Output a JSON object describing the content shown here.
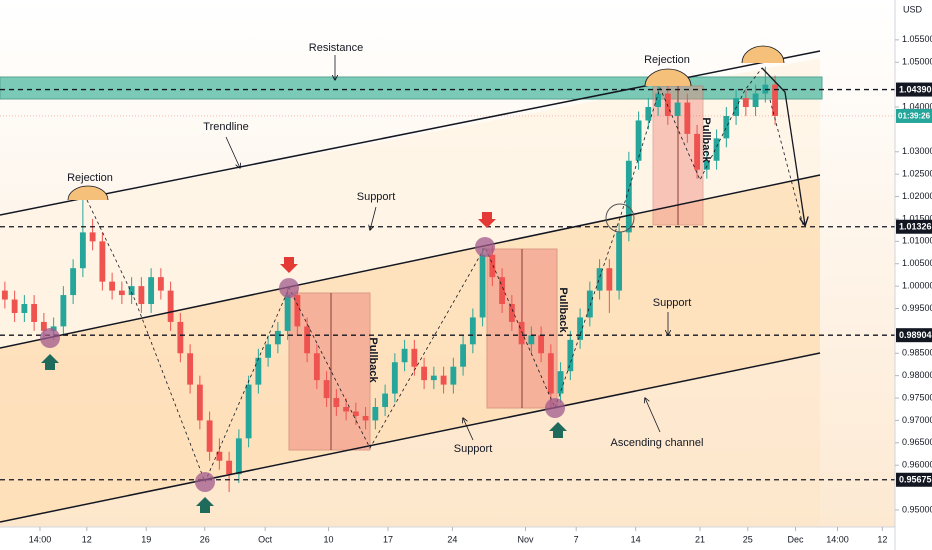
{
  "chart_data": {
    "type": "candlestick",
    "currency": "USD",
    "up_color": "#26a69a",
    "down_color": "#ef5350",
    "ylim": [
      0.9462,
      1.0639
    ],
    "xlim": [
      -0.5,
      91.3
    ],
    "grid": false,
    "yticks": [
      {
        "value": 1.055,
        "label": "1.05500"
      },
      {
        "value": 1.05,
        "label": "1.05000"
      },
      {
        "value": 1.04,
        "label": "1.04000"
      },
      {
        "value": 1.03,
        "label": "1.03000"
      },
      {
        "value": 1.025,
        "label": "1.02500"
      },
      {
        "value": 1.02,
        "label": "1.02000"
      },
      {
        "value": 1.015,
        "label": "1.01500"
      },
      {
        "value": 1.01,
        "label": "1.01000"
      },
      {
        "value": 1.005,
        "label": "1.00500"
      },
      {
        "value": 1.0,
        "label": "1.00000"
      },
      {
        "value": 0.995,
        "label": "0.99500"
      },
      {
        "value": 0.985,
        "label": "0.98500"
      },
      {
        "value": 0.98,
        "label": "0.98000"
      },
      {
        "value": 0.975,
        "label": "0.97500"
      },
      {
        "value": 0.97,
        "label": "0.97000"
      },
      {
        "value": 0.965,
        "label": "0.96500"
      },
      {
        "value": 0.96,
        "label": "0.96000"
      },
      {
        "value": 0.95,
        "label": "0.95000"
      }
    ],
    "xticks": [
      {
        "value": 3.6,
        "label": "14:00"
      },
      {
        "value": 8.4,
        "label": "12"
      },
      {
        "value": 14.5,
        "label": "19"
      },
      {
        "value": 20.5,
        "label": "26"
      },
      {
        "value": 26.7,
        "label": "Oct"
      },
      {
        "value": 33.2,
        "label": "10"
      },
      {
        "value": 39.3,
        "label": "17"
      },
      {
        "value": 45.9,
        "label": "24"
      },
      {
        "value": 53.4,
        "label": "Nov"
      },
      {
        "value": 58.6,
        "label": "7"
      },
      {
        "value": 64.7,
        "label": "14"
      },
      {
        "value": 71.3,
        "label": "21"
      },
      {
        "value": 76.2,
        "label": "25"
      },
      {
        "value": 81.1,
        "label": "Dec"
      },
      {
        "value": 85.4,
        "label": "14:00"
      },
      {
        "value": 90.0,
        "label": "12"
      }
    ],
    "levels": [
      {
        "value": 1.0439,
        "label": "1.04390"
      },
      {
        "value": 1.01326,
        "label": "1.01326"
      },
      {
        "value": 0.98904,
        "label": "0.98904"
      },
      {
        "value": 0.95675,
        "label": "0.95675"
      }
    ],
    "countdown": "01:39:26",
    "annotations": [
      "Resistance",
      "Trendline",
      "Rejection",
      "Support",
      "Rejection",
      "Support",
      "Support",
      "Ascending channel",
      "Pullback",
      "Pullback",
      "Pullback"
    ],
    "candles": [
      [
        0.999,
        1.001,
        0.995,
        0.997
      ],
      [
        0.997,
        0.999,
        0.992,
        0.994
      ],
      [
        0.994,
        0.998,
        0.992,
        0.996
      ],
      [
        0.996,
        0.998,
        0.99,
        0.992
      ],
      [
        0.992,
        0.994,
        0.988,
        0.99
      ],
      [
        0.99,
        0.993,
        0.988,
        0.991
      ],
      [
        0.991,
        1.0,
        0.989,
        0.998
      ],
      [
        0.998,
        1.006,
        0.996,
        1.004
      ],
      [
        1.004,
        1.0195,
        1.002,
        1.012
      ],
      [
        1.012,
        1.015,
        1.008,
        1.01
      ],
      [
        1.01,
        1.012,
        0.999,
        1.001
      ],
      [
        1.001,
        1.003,
        0.997,
        0.999
      ],
      [
        0.999,
        1.001,
        0.996,
        0.998
      ],
      [
        0.998,
        1.002,
        0.996,
        1.0
      ],
      [
        1.0,
        1.002,
        0.994,
        0.996
      ],
      [
        0.996,
        1.004,
        0.994,
        1.002
      ],
      [
        1.002,
        1.004,
        0.997,
        0.999
      ],
      [
        0.999,
        1.001,
        0.99,
        0.992
      ],
      [
        0.992,
        0.994,
        0.983,
        0.985
      ],
      [
        0.985,
        0.987,
        0.976,
        0.978
      ],
      [
        0.978,
        0.98,
        0.968,
        0.97
      ],
      [
        0.97,
        0.972,
        0.961,
        0.963
      ],
      [
        0.963,
        0.966,
        0.959,
        0.961
      ],
      [
        0.961,
        0.963,
        0.954,
        0.958
      ],
      [
        0.958,
        0.968,
        0.956,
        0.966
      ],
      [
        0.966,
        0.98,
        0.964,
        0.978
      ],
      [
        0.978,
        0.986,
        0.976,
        0.984
      ],
      [
        0.984,
        0.989,
        0.982,
        0.987
      ],
      [
        0.987,
        0.992,
        0.985,
        0.99
      ],
      [
        0.99,
        0.9995,
        0.988,
        0.998
      ],
      [
        0.998,
        0.999,
        0.989,
        0.991
      ],
      [
        0.991,
        0.993,
        0.983,
        0.985
      ],
      [
        0.985,
        0.987,
        0.977,
        0.979
      ],
      [
        0.979,
        0.981,
        0.973,
        0.975
      ],
      [
        0.975,
        0.977,
        0.971,
        0.973
      ],
      [
        0.973,
        0.975,
        0.97,
        0.972
      ],
      [
        0.972,
        0.974,
        0.969,
        0.971
      ],
      [
        0.971,
        0.973,
        0.968,
        0.97
      ],
      [
        0.97,
        0.975,
        0.968,
        0.973
      ],
      [
        0.973,
        0.978,
        0.971,
        0.976
      ],
      [
        0.976,
        0.985,
        0.974,
        0.983
      ],
      [
        0.983,
        0.988,
        0.981,
        0.986
      ],
      [
        0.986,
        0.988,
        0.98,
        0.982
      ],
      [
        0.982,
        0.984,
        0.977,
        0.979
      ],
      [
        0.979,
        0.982,
        0.977,
        0.98
      ],
      [
        0.98,
        0.982,
        0.976,
        0.978
      ],
      [
        0.978,
        0.984,
        0.976,
        0.982
      ],
      [
        0.982,
        0.989,
        0.98,
        0.987
      ],
      [
        0.987,
        0.995,
        0.985,
        0.993
      ],
      [
        0.993,
        1.0085,
        0.991,
        1.007
      ],
      [
        1.007,
        1.009,
        1.0,
        1.002
      ],
      [
        1.002,
        1.004,
        0.994,
        0.996
      ],
      [
        0.996,
        0.998,
        0.99,
        0.992
      ],
      [
        0.992,
        0.994,
        0.985,
        0.987
      ],
      [
        0.987,
        0.991,
        0.985,
        0.989
      ],
      [
        0.989,
        0.991,
        0.983,
        0.985
      ],
      [
        0.985,
        0.987,
        0.9728,
        0.976
      ],
      [
        0.976,
        0.983,
        0.974,
        0.981
      ],
      [
        0.981,
        0.99,
        0.979,
        0.988
      ],
      [
        0.988,
        0.995,
        0.986,
        0.993
      ],
      [
        0.993,
        1.001,
        0.991,
        0.999
      ],
      [
        0.999,
        1.006,
        0.997,
        1.004
      ],
      [
        1.004,
        1.006,
        0.994,
        0.999
      ],
      [
        0.999,
        1.014,
        0.997,
        1.012
      ],
      [
        1.012,
        1.03,
        1.01,
        1.028
      ],
      [
        1.028,
        1.039,
        1.026,
        1.037
      ],
      [
        1.037,
        1.042,
        1.035,
        1.04
      ],
      [
        1.04,
        1.045,
        1.038,
        1.043
      ],
      [
        1.043,
        1.045,
        1.036,
        1.038
      ],
      [
        1.038,
        1.043,
        1.036,
        1.041
      ],
      [
        1.041,
        1.043,
        1.032,
        1.034
      ],
      [
        1.034,
        1.036,
        1.024,
        1.026
      ],
      [
        1.026,
        1.03,
        1.024,
        1.028
      ],
      [
        1.028,
        1.035,
        1.026,
        1.033
      ],
      [
        1.033,
        1.04,
        1.031,
        1.038
      ],
      [
        1.038,
        1.044,
        1.036,
        1.042
      ],
      [
        1.042,
        1.044,
        1.038,
        1.04
      ],
      [
        1.04,
        1.045,
        1.038,
        1.043
      ],
      [
        1.043,
        1.049,
        1.041,
        1.045
      ],
      [
        1.045,
        1.047,
        1.036,
        1.038
      ]
    ]
  }
}
